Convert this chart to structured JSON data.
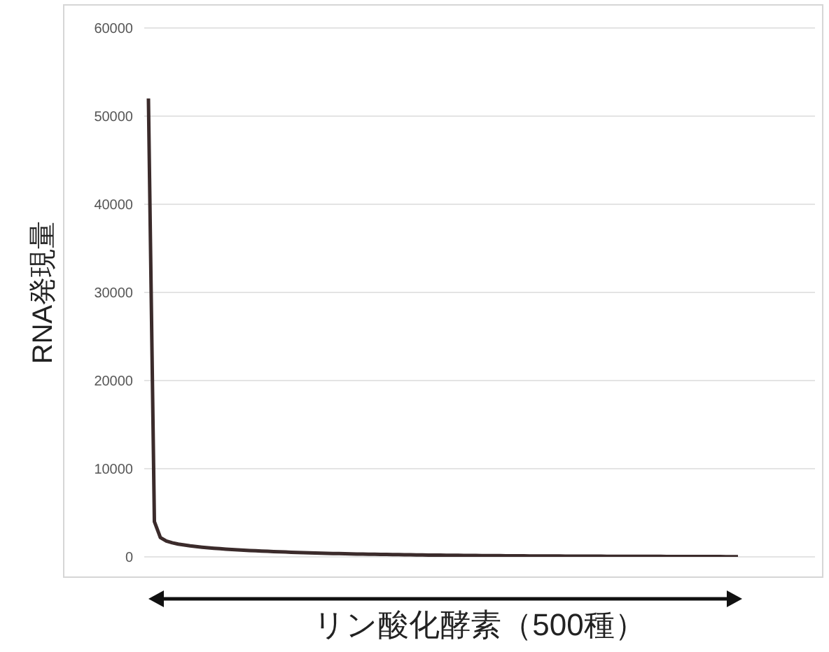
{
  "chart_data": {
    "type": "line",
    "ylabel": "RNA発現量",
    "xlabel": "リン酸化酵素（500種）",
    "categories": [
      null,
      null,
      null,
      null,
      null,
      null,
      null,
      null,
      null,
      null,
      null,
      null,
      null,
      null,
      null,
      null,
      null,
      null,
      null,
      null,
      null,
      null,
      null,
      null,
      null,
      null,
      null,
      null,
      null,
      null,
      null,
      null,
      null,
      null,
      null,
      null,
      null,
      null,
      null,
      null,
      null,
      null,
      null,
      null,
      null,
      null,
      null,
      null,
      null,
      null,
      null,
      null,
      null,
      null,
      null,
      null,
      null,
      null,
      null,
      null,
      null,
      null,
      null,
      null,
      null,
      null,
      null,
      null,
      null,
      null,
      null,
      null,
      null,
      null,
      null,
      null,
      null,
      null,
      null,
      null,
      null,
      null,
      null,
      null,
      null,
      null,
      null,
      null,
      null,
      null,
      null,
      null,
      null,
      null,
      null,
      null,
      null,
      null,
      null,
      null
    ],
    "series": [
      {
        "color": "#3b2b2b",
        "values": [
          52000,
          4000,
          2200,
          1800,
          1600,
          1450,
          1350,
          1250,
          1170,
          1100,
          1040,
          980,
          930,
          880,
          840,
          800,
          760,
          720,
          690,
          660,
          630,
          600,
          575,
          550,
          525,
          500,
          480,
          460,
          440,
          420,
          400,
          385,
          370,
          355,
          340,
          325,
          310,
          300,
          290,
          280,
          270,
          260,
          250,
          240,
          232,
          224,
          216,
          208,
          200,
          193,
          186,
          179,
          172,
          166,
          160,
          154,
          148,
          142,
          137,
          132,
          127,
          122,
          117,
          113,
          109,
          105,
          101,
          97,
          93,
          90,
          87,
          84,
          81,
          78,
          75,
          72,
          70,
          68,
          66,
          64,
          62,
          60,
          58,
          56,
          54,
          52,
          50,
          48,
          46,
          44,
          42,
          40,
          38,
          36,
          34,
          32,
          30,
          28,
          26,
          24
        ]
      }
    ],
    "ylim": [
      0,
      60000
    ],
    "yticks": [
      0,
      10000,
      20000,
      30000,
      40000,
      50000,
      60000
    ],
    "grid": "y",
    "tick_labels": "y",
    "marker": "none",
    "line_style": "solid",
    "legend": false
  }
}
